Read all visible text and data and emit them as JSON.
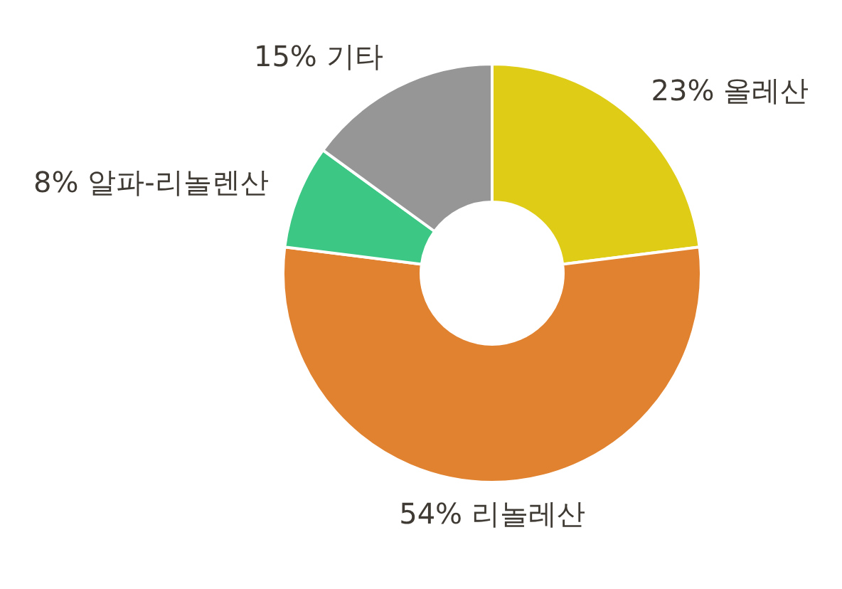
{
  "chart_data": {
    "type": "donut",
    "categories": [
      "올레산",
      "리놀레산",
      "알파-리놀렌산",
      "기타"
    ],
    "values": [
      23,
      54,
      8,
      15
    ],
    "value_labels": [
      "23%",
      "54%",
      "8%",
      "15%"
    ],
    "colors": [
      "#dfcc17",
      "#e0822f",
      "#3dc785",
      "#969696"
    ],
    "legend": false
  }
}
